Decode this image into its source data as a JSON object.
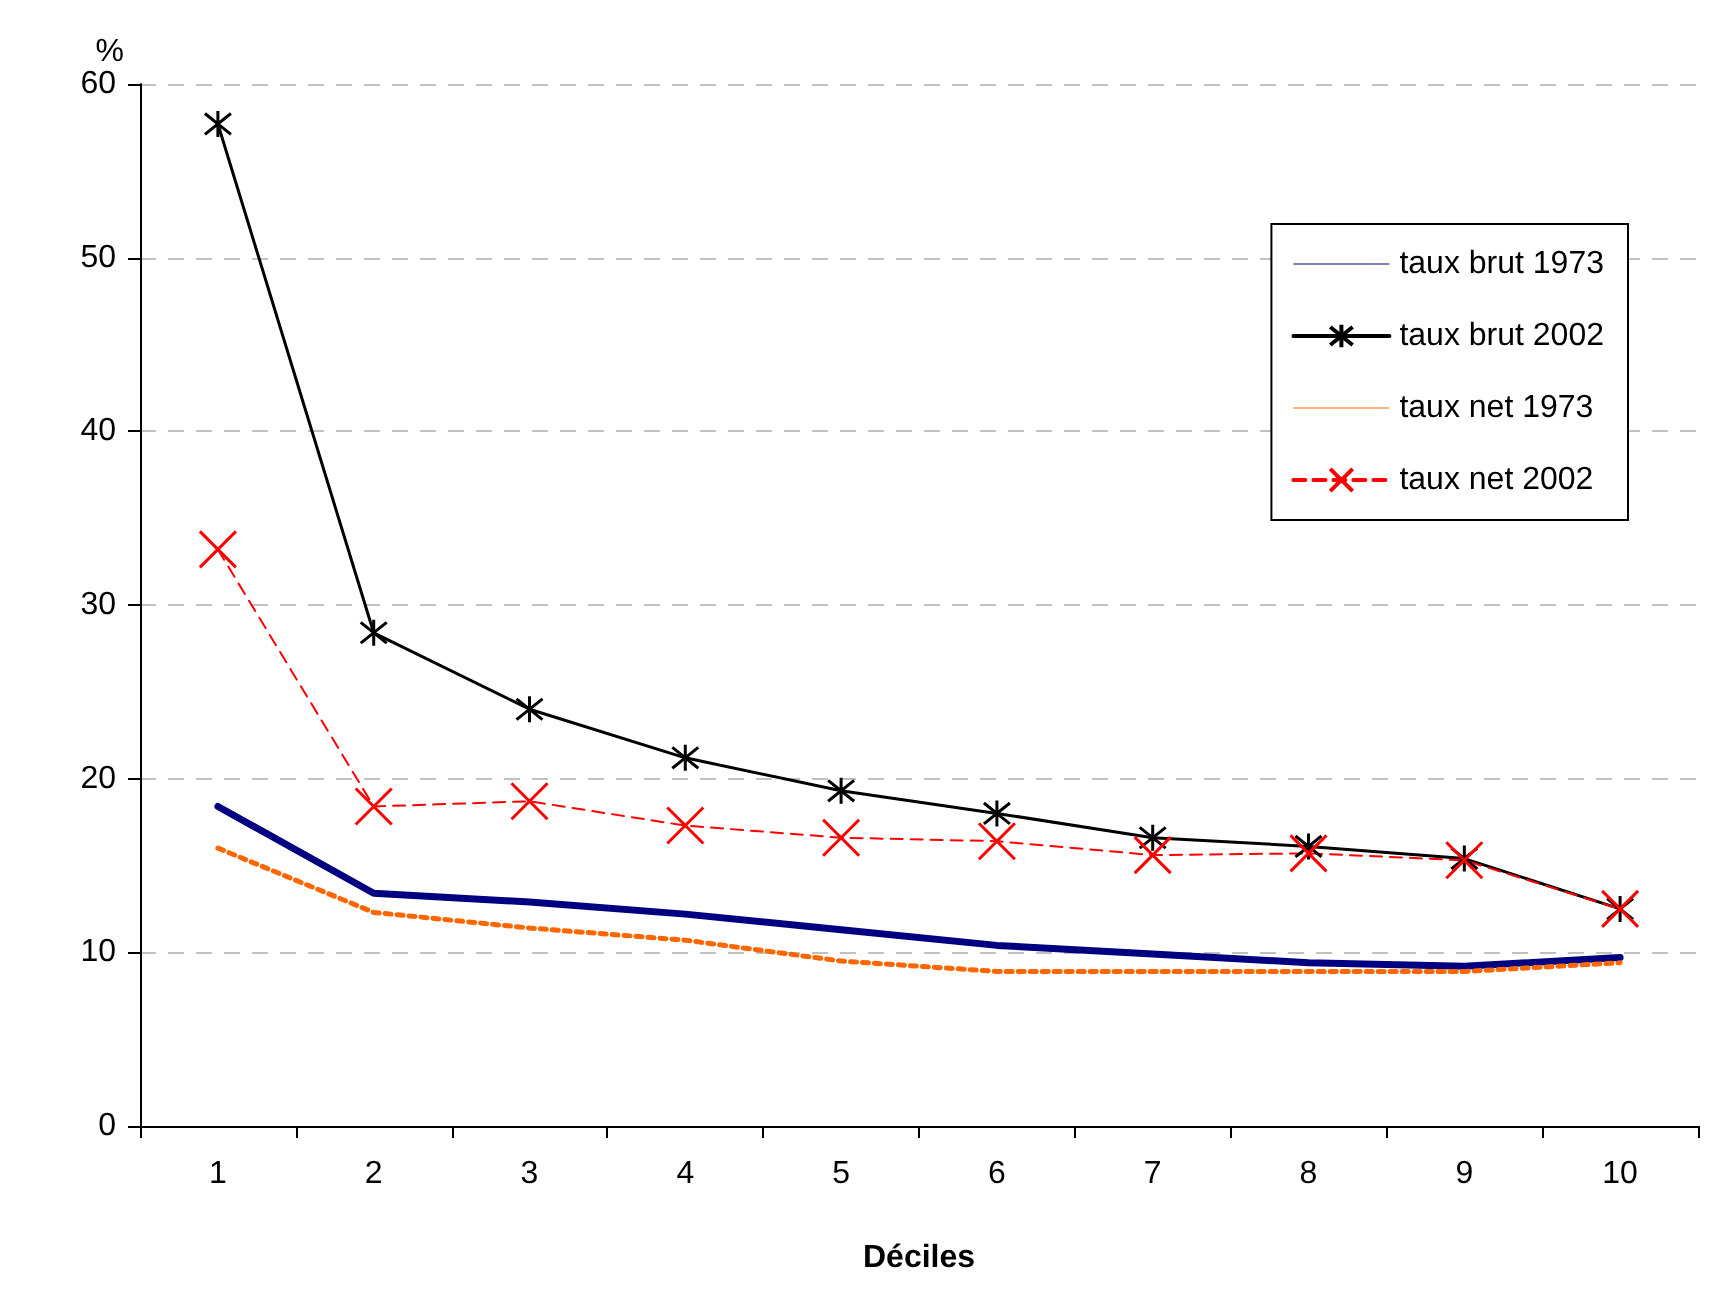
{
  "chart_data": {
    "type": "line",
    "xlabel": "Déciles",
    "ylabel": "%",
    "categories": [
      "1",
      "2",
      "3",
      "4",
      "5",
      "6",
      "7",
      "8",
      "9",
      "10"
    ],
    "ylim": [
      0,
      60
    ],
    "yticks": [
      0,
      10,
      20,
      30,
      40,
      50,
      60
    ],
    "grid": "y",
    "legend": "top right",
    "series": [
      {
        "name": "taux brut 1973",
        "color": "#000080",
        "line_style": "solid",
        "marker": "none",
        "values": [
          18.4,
          13.4,
          12.9,
          12.2,
          11.3,
          10.4,
          9.9,
          9.4,
          9.2,
          9.7
        ]
      },
      {
        "name": "taux brut 2002",
        "color": "#000000",
        "line_style": "solid",
        "marker": "cross",
        "values": [
          57.7,
          28.4,
          24.0,
          21.2,
          19.3,
          18.0,
          16.6,
          16.1,
          15.4,
          12.5
        ]
      },
      {
        "name": "taux net 1973",
        "color": "#ff6600",
        "line_style": "dotted",
        "marker": "none",
        "values": [
          16.0,
          12.3,
          11.4,
          10.7,
          9.5,
          8.9,
          8.9,
          8.9,
          8.9,
          9.4
        ]
      },
      {
        "name": "taux net 2002",
        "color": "#ff0000",
        "line_style": "dashed",
        "marker": "cross",
        "values": [
          33.2,
          18.4,
          18.7,
          17.3,
          16.6,
          16.4,
          15.6,
          15.7,
          15.3,
          12.5
        ]
      }
    ]
  }
}
